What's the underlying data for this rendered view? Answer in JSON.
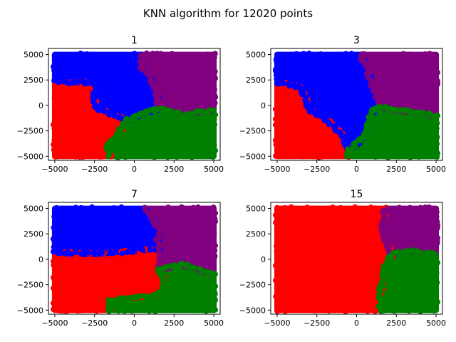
{
  "figure": {
    "suptitle": "KNN algorithm for 12020 points"
  },
  "colors": {
    "red": "#ff0000",
    "blue": "#0000ff",
    "purple": "#800080",
    "green": "#008000"
  },
  "chart_data": [
    {
      "type": "scatter",
      "title": "1",
      "xlim": [
        -5400,
        5400
      ],
      "ylim": [
        -5400,
        5600
      ],
      "xticks": [
        -5000,
        -2500,
        0,
        2500,
        5000
      ],
      "yticks": [
        -5000,
        -2500,
        0,
        2500,
        5000
      ],
      "xtick_labels": [
        "−5000",
        "−2500",
        "0",
        "2500",
        "5000"
      ],
      "ytick_labels": [
        "−5000",
        "−2500",
        "0",
        "2500",
        "5000"
      ],
      "regions": [
        {
          "class": "red",
          "color": "#ff0000",
          "polygon": [
            [
              -5000,
              -5000
            ],
            [
              -1500,
              -5000
            ],
            [
              -1700,
              -3800
            ],
            [
              -1000,
              -2800
            ],
            [
              -500,
              -1500
            ],
            [
              -2500,
              -200
            ],
            [
              -2500,
              2200
            ],
            [
              -5000,
              2300
            ]
          ]
        },
        {
          "class": "blue",
          "color": "#0000ff",
          "polygon": [
            [
              -5000,
              2300
            ],
            [
              -2500,
              2200
            ],
            [
              -2500,
              -200
            ],
            [
              -500,
              -1500
            ],
            [
              500,
              -800
            ],
            [
              1500,
              -300
            ],
            [
              1400,
              1500
            ],
            [
              400,
              4000
            ],
            [
              500,
              5000
            ],
            [
              -5000,
              5000
            ]
          ]
        },
        {
          "class": "purple",
          "color": "#800080",
          "polygon": [
            [
              500,
              5000
            ],
            [
              5000,
              5000
            ],
            [
              5000,
              -500
            ],
            [
              3000,
              -800
            ],
            [
              1500,
              -300
            ],
            [
              1400,
              1500
            ],
            [
              400,
              4000
            ]
          ]
        },
        {
          "class": "green",
          "color": "#008000",
          "polygon": [
            [
              -1500,
              -5000
            ],
            [
              5000,
              -5000
            ],
            [
              5000,
              -500
            ],
            [
              3000,
              -800
            ],
            [
              1500,
              -300
            ],
            [
              500,
              -800
            ],
            [
              -500,
              -1500
            ],
            [
              -1000,
              -2800
            ],
            [
              -1700,
              -3800
            ]
          ]
        }
      ]
    },
    {
      "type": "scatter",
      "title": "3",
      "xlim": [
        -5400,
        5400
      ],
      "ylim": [
        -5400,
        5600
      ],
      "xticks": [
        -5000,
        -2500,
        0,
        2500,
        5000
      ],
      "yticks": [
        -5000,
        -2500,
        0,
        2500,
        5000
      ],
      "xtick_labels": [
        "−5000",
        "−2500",
        "0",
        "2500",
        "5000"
      ],
      "ytick_labels": [
        "−5000",
        "−2500",
        "0",
        "2500",
        "5000"
      ],
      "regions": [
        {
          "class": "red",
          "color": "#ff0000",
          "polygon": [
            [
              -5000,
              -5000
            ],
            [
              -500,
              -5000
            ],
            [
              -800,
              -3000
            ],
            [
              -2000,
              -1200
            ],
            [
              -3000,
              -500
            ],
            [
              -3500,
              1800
            ],
            [
              -5000,
              2300
            ]
          ]
        },
        {
          "class": "blue",
          "color": "#0000ff",
          "polygon": [
            [
              -5000,
              2300
            ],
            [
              -3500,
              1800
            ],
            [
              -3000,
              -500
            ],
            [
              -2000,
              -1200
            ],
            [
              -800,
              -3000
            ],
            [
              -500,
              -4500
            ],
            [
              500,
              -3000
            ],
            [
              1000,
              -500
            ],
            [
              1000,
              2000
            ],
            [
              400,
              4500
            ],
            [
              400,
              5000
            ],
            [
              -5000,
              5000
            ]
          ]
        },
        {
          "class": "purple",
          "color": "#800080",
          "polygon": [
            [
              400,
              5000
            ],
            [
              5000,
              5000
            ],
            [
              5000,
              -1000
            ],
            [
              3000,
              -500
            ],
            [
              1500,
              -200
            ],
            [
              1000,
              2000
            ],
            [
              400,
              4500
            ]
          ]
        },
        {
          "class": "green",
          "color": "#008000",
          "polygon": [
            [
              -500,
              -5000
            ],
            [
              5000,
              -5000
            ],
            [
              5000,
              -1000
            ],
            [
              3000,
              -500
            ],
            [
              1500,
              -200
            ],
            [
              1000,
              -500
            ],
            [
              500,
              -3000
            ],
            [
              -500,
              -4500
            ]
          ]
        }
      ]
    },
    {
      "type": "scatter",
      "title": "7",
      "xlim": [
        -5400,
        5400
      ],
      "ylim": [
        -5400,
        5600
      ],
      "xticks": [
        -5000,
        -2500,
        0,
        2500,
        5000
      ],
      "yticks": [
        -5000,
        -2500,
        0,
        2500,
        5000
      ],
      "xtick_labels": [
        "−5000",
        "−2500",
        "0",
        "2500",
        "5000"
      ],
      "ytick_labels": [
        "−5000",
        "−2500",
        "0",
        "2500",
        "5000"
      ],
      "regions": [
        {
          "class": "red",
          "color": "#ff0000",
          "polygon": [
            [
              -5000,
              -5000
            ],
            [
              -1500,
              -5000
            ],
            [
              -1500,
              -4000
            ],
            [
              1500,
              -3500
            ],
            [
              2000,
              -2500
            ],
            [
              1500,
              -1000
            ],
            [
              1500,
              1000
            ],
            [
              -2500,
              500
            ],
            [
              -5000,
              700
            ]
          ]
        },
        {
          "class": "blue",
          "color": "#0000ff",
          "polygon": [
            [
              -5000,
              700
            ],
            [
              -2500,
              500
            ],
            [
              1500,
              1000
            ],
            [
              1500,
              3000
            ],
            [
              700,
              5000
            ],
            [
              -5000,
              5000
            ]
          ]
        },
        {
          "class": "purple",
          "color": "#800080",
          "polygon": [
            [
              700,
              5000
            ],
            [
              5000,
              5000
            ],
            [
              5000,
              -1500
            ],
            [
              3000,
              -500
            ],
            [
              1500,
              -1000
            ],
            [
              1500,
              3000
            ]
          ]
        },
        {
          "class": "green",
          "color": "#008000",
          "polygon": [
            [
              -1500,
              -5000
            ],
            [
              5000,
              -5000
            ],
            [
              5000,
              -1500
            ],
            [
              3000,
              -500
            ],
            [
              1500,
              -1000
            ],
            [
              2000,
              -2500
            ],
            [
              1500,
              -3500
            ],
            [
              -1500,
              -4000
            ]
          ]
        }
      ]
    },
    {
      "type": "scatter",
      "title": "15",
      "xlim": [
        -5400,
        5400
      ],
      "ylim": [
        -5400,
        5600
      ],
      "xticks": [
        -5000,
        -2500,
        0,
        2500,
        5000
      ],
      "yticks": [
        -5000,
        -2500,
        0,
        2500,
        5000
      ],
      "xtick_labels": [
        "−5000",
        "−2500",
        "0",
        "2500",
        "5000"
      ],
      "ytick_labels": [
        "−5000",
        "−2500",
        "0",
        "2500",
        "5000"
      ],
      "regions": [
        {
          "class": "red",
          "color": "#ff0000",
          "polygon": [
            [
              -5000,
              -5000
            ],
            [
              1500,
              -5000
            ],
            [
              1500,
              -3000
            ],
            [
              1800,
              -800
            ],
            [
              2200,
              500
            ],
            [
              1600,
              3000
            ],
            [
              1800,
              5000
            ],
            [
              -5000,
              5000
            ]
          ]
        },
        {
          "class": "purple",
          "color": "#800080",
          "polygon": [
            [
              1800,
              5000
            ],
            [
              5000,
              5000
            ],
            [
              5000,
              500
            ],
            [
              3500,
              800
            ],
            [
              2200,
              500
            ],
            [
              1600,
              3000
            ]
          ]
        },
        {
          "class": "green",
          "color": "#008000",
          "polygon": [
            [
              1500,
              -5000
            ],
            [
              5000,
              -5000
            ],
            [
              5000,
              500
            ],
            [
              3500,
              800
            ],
            [
              2200,
              500
            ],
            [
              1800,
              -800
            ],
            [
              1500,
              -3000
            ]
          ]
        }
      ]
    }
  ]
}
